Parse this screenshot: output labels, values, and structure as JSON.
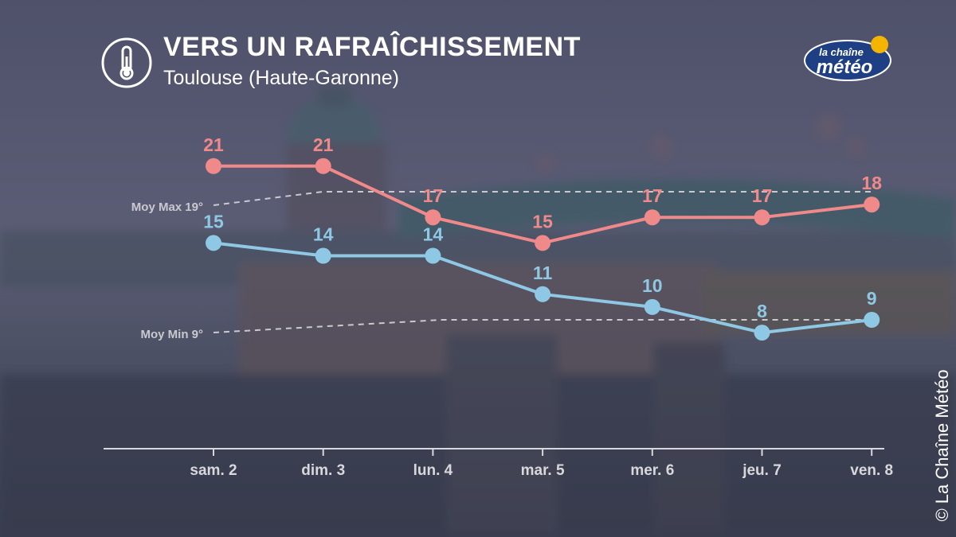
{
  "header": {
    "title": "VERS UN RAFRAÎCHISSEMENT",
    "subtitle": "Toulouse (Haute-Garonne)",
    "icon": "thermometer-icon"
  },
  "logo": {
    "line1": "la chaîne",
    "line2": "météo"
  },
  "copyright": "© La Chaîne Météo",
  "colors": {
    "max": "#f08a8a",
    "min": "#8fc8e4",
    "avg_line": "#c9c9cf",
    "axis": "#d8d8dc"
  },
  "chart_data": {
    "type": "line",
    "categories": [
      "sam. 2",
      "dim. 3",
      "lun. 4",
      "mar. 5",
      "mer. 6",
      "jeu. 7",
      "ven. 8"
    ],
    "series": [
      {
        "values": [
          21,
          21,
          17,
          15,
          17,
          17,
          18
        ]
      },
      {
        "values": [
          15,
          14,
          14,
          11,
          10,
          8,
          9
        ]
      }
    ],
    "references": [
      {
        "label": "Moy Max 19°",
        "value": 19
      },
      {
        "label": "Moy Min 9°",
        "value": 9
      }
    ]
  }
}
